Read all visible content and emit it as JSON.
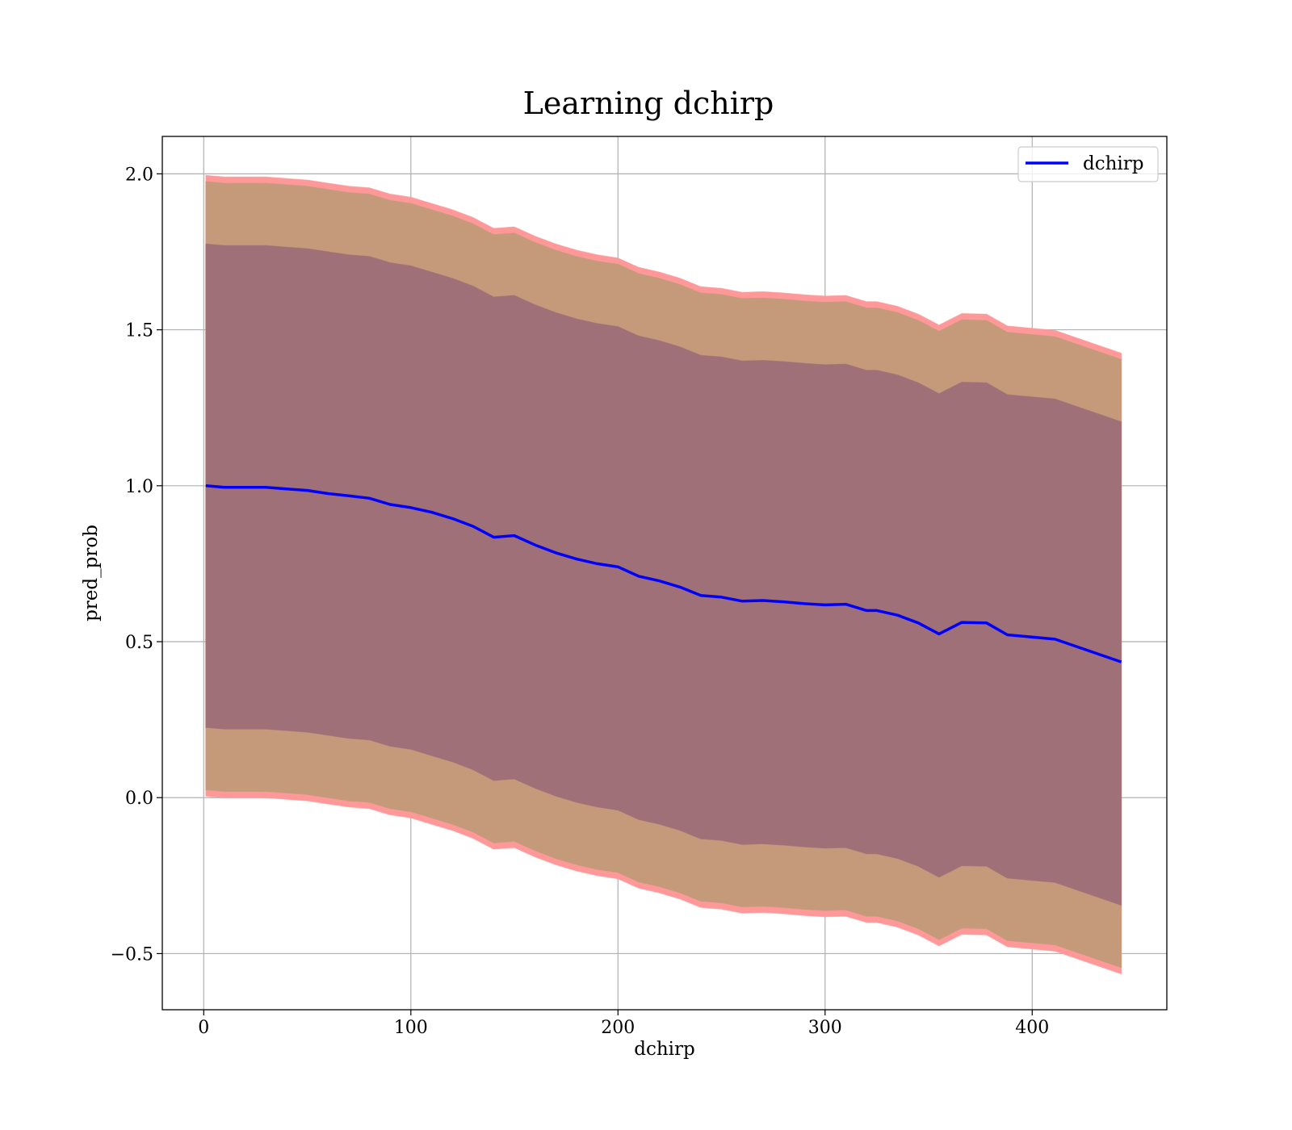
{
  "chart_data": {
    "type": "line",
    "title": "Learning dchirp",
    "xlabel": "dchirp",
    "ylabel": "pred_prob",
    "xlim": [
      -20,
      465
    ],
    "ylim": [
      -0.68,
      2.12
    ],
    "xticks": [
      0,
      100,
      200,
      300,
      400
    ],
    "yticks": [
      -0.5,
      0.0,
      0.5,
      1.0,
      1.5,
      2.0
    ],
    "xtick_labels": [
      "0",
      "100",
      "200",
      "300",
      "400"
    ],
    "ytick_labels": [
      "−0.5",
      "0.0",
      "0.5",
      "1.0",
      "1.5",
      "2.0"
    ],
    "grid": true,
    "legend_position": "top-right",
    "x": [
      1,
      10,
      20,
      30,
      40,
      50,
      60,
      70,
      80,
      90,
      100,
      110,
      120,
      130,
      140,
      150,
      160,
      170,
      180,
      190,
      200,
      210,
      220,
      230,
      240,
      250,
      260,
      270,
      280,
      290,
      300,
      310,
      320,
      325,
      335,
      345,
      355,
      366,
      378,
      388,
      411,
      443
    ],
    "series": [
      {
        "name": "dchirp",
        "color": "#0000ff",
        "values": [
          1.0,
          0.995,
          0.995,
          0.995,
          0.99,
          0.985,
          0.975,
          0.968,
          0.96,
          0.94,
          0.93,
          0.915,
          0.895,
          0.87,
          0.835,
          0.84,
          0.81,
          0.785,
          0.765,
          0.75,
          0.74,
          0.71,
          0.695,
          0.675,
          0.648,
          0.643,
          0.63,
          0.632,
          0.628,
          0.622,
          0.618,
          0.62,
          0.6,
          0.6,
          0.585,
          0.56,
          0.525,
          0.562,
          0.56,
          0.522,
          0.508,
          0.435
        ]
      }
    ],
    "bands": [
      {
        "label": "outer",
        "color": "#ff9999",
        "upper": [
          1.995,
          1.99,
          1.99,
          1.99,
          1.985,
          1.98,
          1.97,
          1.96,
          1.955,
          1.935,
          1.925,
          1.905,
          1.885,
          1.86,
          1.825,
          1.83,
          1.8,
          1.775,
          1.755,
          1.74,
          1.73,
          1.7,
          1.685,
          1.665,
          1.638,
          1.633,
          1.62,
          1.622,
          1.618,
          1.612,
          1.608,
          1.61,
          1.59,
          1.59,
          1.575,
          1.55,
          1.515,
          1.552,
          1.55,
          1.512,
          1.498,
          1.425
        ],
        "lower": [
          0.005,
          0.0,
          0.0,
          0.0,
          -0.005,
          -0.01,
          -0.02,
          -0.03,
          -0.035,
          -0.055,
          -0.065,
          -0.085,
          -0.105,
          -0.13,
          -0.165,
          -0.16,
          -0.19,
          -0.215,
          -0.235,
          -0.25,
          -0.26,
          -0.29,
          -0.305,
          -0.325,
          -0.352,
          -0.357,
          -0.37,
          -0.368,
          -0.372,
          -0.378,
          -0.382,
          -0.38,
          -0.4,
          -0.4,
          -0.415,
          -0.44,
          -0.475,
          -0.438,
          -0.44,
          -0.478,
          -0.492,
          -0.565
        ]
      },
      {
        "label": "middle",
        "color": "#c49a7a",
        "upper": [
          1.975,
          1.97,
          1.97,
          1.97,
          1.965,
          1.96,
          1.95,
          1.94,
          1.935,
          1.915,
          1.905,
          1.885,
          1.865,
          1.84,
          1.805,
          1.81,
          1.78,
          1.755,
          1.735,
          1.72,
          1.71,
          1.68,
          1.665,
          1.645,
          1.618,
          1.613,
          1.6,
          1.602,
          1.598,
          1.592,
          1.588,
          1.59,
          1.57,
          1.57,
          1.555,
          1.53,
          1.495,
          1.532,
          1.53,
          1.492,
          1.478,
          1.405
        ],
        "lower": [
          0.025,
          0.02,
          0.02,
          0.02,
          0.015,
          0.01,
          0.0,
          -0.01,
          -0.015,
          -0.035,
          -0.045,
          -0.065,
          -0.085,
          -0.11,
          -0.145,
          -0.14,
          -0.17,
          -0.195,
          -0.215,
          -0.23,
          -0.24,
          -0.27,
          -0.285,
          -0.305,
          -0.332,
          -0.337,
          -0.35,
          -0.348,
          -0.352,
          -0.358,
          -0.362,
          -0.36,
          -0.38,
          -0.38,
          -0.395,
          -0.42,
          -0.455,
          -0.418,
          -0.42,
          -0.458,
          -0.472,
          -0.545
        ]
      },
      {
        "label": "inner",
        "color": "#a07078",
        "upper": [
          1.775,
          1.77,
          1.77,
          1.77,
          1.765,
          1.76,
          1.75,
          1.74,
          1.735,
          1.715,
          1.705,
          1.685,
          1.665,
          1.64,
          1.605,
          1.61,
          1.58,
          1.555,
          1.535,
          1.52,
          1.51,
          1.48,
          1.465,
          1.445,
          1.418,
          1.413,
          1.4,
          1.402,
          1.398,
          1.392,
          1.388,
          1.39,
          1.37,
          1.37,
          1.355,
          1.33,
          1.295,
          1.332,
          1.33,
          1.292,
          1.278,
          1.205
        ],
        "lower": [
          0.225,
          0.22,
          0.22,
          0.22,
          0.215,
          0.21,
          0.2,
          0.19,
          0.185,
          0.165,
          0.155,
          0.135,
          0.115,
          0.09,
          0.055,
          0.06,
          0.03,
          0.005,
          -0.015,
          -0.03,
          -0.04,
          -0.07,
          -0.085,
          -0.105,
          -0.132,
          -0.137,
          -0.15,
          -0.148,
          -0.152,
          -0.158,
          -0.162,
          -0.16,
          -0.18,
          -0.18,
          -0.195,
          -0.22,
          -0.255,
          -0.218,
          -0.22,
          -0.258,
          -0.272,
          -0.345
        ]
      }
    ]
  }
}
